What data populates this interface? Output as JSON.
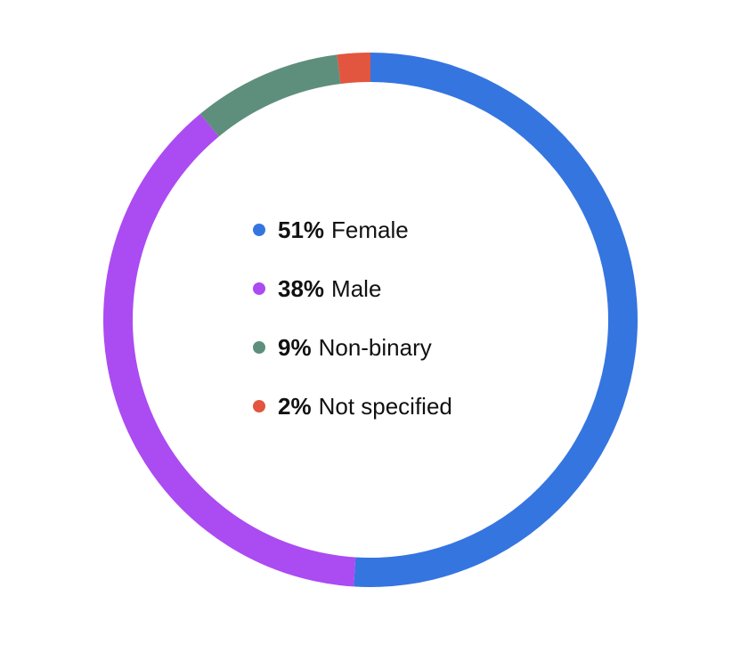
{
  "chart_data": {
    "type": "pie",
    "variant": "donut",
    "title": "",
    "slices": [
      {
        "label": "Female",
        "value": 51,
        "display": "51%",
        "color": "#3575E0"
      },
      {
        "label": "Male",
        "value": 38,
        "display": "38%",
        "color": "#AB4BF2"
      },
      {
        "label": "Non-binary",
        "value": 9,
        "display": "9%",
        "color": "#5E8F7C"
      },
      {
        "label": "Not specified",
        "value": 2,
        "display": "2%",
        "color": "#E2553E"
      }
    ],
    "legend_position": "center",
    "start_angle": "top",
    "direction": "clockwise"
  }
}
